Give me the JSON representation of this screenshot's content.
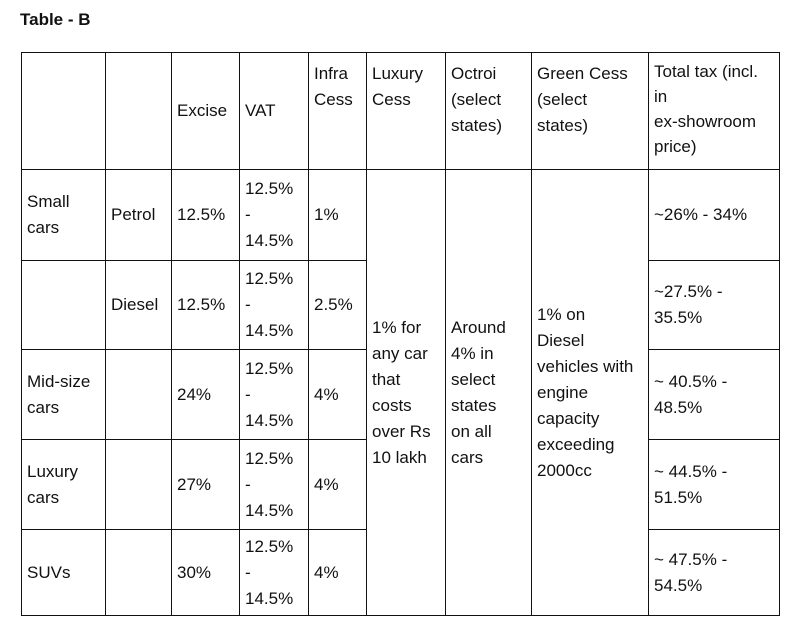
{
  "title": "Table - B",
  "headers": {
    "excise": "Excise",
    "vat": "VAT",
    "infra_cess": "Infra\nCess",
    "luxury_cess": "Luxury\nCess",
    "octroi": "Octroi\n(select\nstates)",
    "green_cess": "Green Cess\n(select\nstates)",
    "total_tax": "Total tax (incl.\nin\nex-showroom\nprice)"
  },
  "rows": [
    {
      "category": "Small\ncars",
      "fuel": "Petrol",
      "excise": "12.5%",
      "vat": "12.5%\n-\n14.5%",
      "infra": "1%",
      "total": "~26% - 34%"
    },
    {
      "category": "",
      "fuel": "Diesel",
      "excise": "12.5%",
      "vat": "12.5%\n-\n14.5%",
      "infra": "2.5%",
      "total": "~27.5% -\n35.5%"
    },
    {
      "category": "Mid-size\ncars",
      "fuel": "",
      "excise": "24%",
      "vat": "12.5%\n-\n14.5%",
      "infra": "4%",
      "total": "~ 40.5% -\n48.5%"
    },
    {
      "category": "Luxury\ncars",
      "fuel": "",
      "excise": "27%",
      "vat": "12.5%\n-\n14.5%",
      "infra": "4%",
      "total": "~ 44.5% -\n51.5%"
    },
    {
      "category": "SUVs",
      "fuel": "",
      "excise": "30%",
      "vat": "12.5%\n-\n14.5%",
      "infra": "4%",
      "total": "~ 47.5% -\n54.5%"
    }
  ],
  "merged": {
    "luxury_cess": "1% for\nany car\nthat\ncosts\nover Rs\n10 lakh",
    "octroi": "Around\n4% in\nselect\nstates\non all\ncars",
    "green_cess": "1% on\nDiesel\nvehicles with\nengine\ncapacity\nexceeding\n2000cc"
  }
}
